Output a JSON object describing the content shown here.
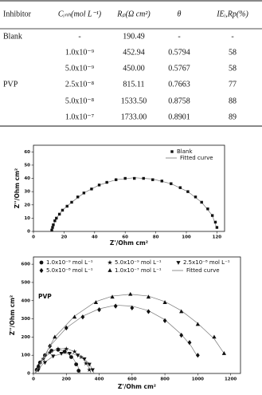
{
  "table": {
    "header": [
      "Inhibitor",
      "Cᵢₙₕ(mol L⁻¹)",
      "Rₚ(Ω cm²)",
      "θ",
      "IEᵢ,Rp(%)"
    ],
    "groups": [
      {
        "label": "Blank",
        "rows": [
          [
            "-",
            "190.49",
            "-",
            "-"
          ]
        ]
      },
      {
        "label": "PVP",
        "rows": [
          [
            "1.0x10⁻⁹",
            "452.94",
            "0.5794",
            "58"
          ],
          [
            "5.0x10⁻⁹",
            "450.00",
            "0.5767",
            "58"
          ],
          [
            "2.5x10⁻⁸",
            "815.11",
            "0.7663",
            "77"
          ],
          [
            "5.0x10⁻⁸",
            "1533.50",
            "0.8758",
            "88"
          ],
          [
            "1.0x10⁻⁷",
            "1733.00",
            "0.8901",
            "89"
          ]
        ]
      }
    ]
  },
  "chart_data": [
    {
      "type": "scatter",
      "x_label": "Z'/Ohm cm²",
      "y_label": "Z''/Ohm cm²",
      "xlim": [
        0,
        125
      ],
      "ylim": [
        0,
        65
      ],
      "xticks": [
        0,
        20,
        40,
        60,
        80,
        100,
        120
      ],
      "yticks": [
        0,
        10,
        20,
        30,
        40,
        50,
        60
      ],
      "legend": "top-right",
      "fit_label": "Fitted curve",
      "series": [
        {
          "name": "Blank",
          "marker": "square",
          "color": "#111111",
          "x": [
            12,
            12.5,
            13,
            14,
            15,
            17,
            19,
            22,
            25,
            29,
            33,
            38,
            43,
            48,
            54,
            60,
            66,
            72,
            78,
            84,
            90,
            96,
            101,
            106,
            110,
            114,
            117,
            119,
            120
          ],
          "values": [
            1,
            3,
            5,
            8,
            10,
            13,
            16,
            19,
            22,
            26,
            29,
            32,
            35,
            37,
            39,
            40,
            40,
            40,
            39,
            38,
            36,
            33,
            30,
            26,
            22,
            17,
            12,
            7,
            3
          ],
          "fit_x": [
            12,
            13,
            15,
            19,
            25,
            33,
            43,
            54,
            66,
            78,
            90,
            101,
            110,
            117,
            120
          ],
          "fit_values": [
            0,
            5,
            10,
            16,
            22,
            29,
            35,
            39,
            40.5,
            39.5,
            36,
            30,
            22,
            12,
            2
          ]
        }
      ]
    },
    {
      "type": "scatter",
      "x_label": "Z'/Ohm cm²",
      "y_label": "Z''/Ohm cm²",
      "annotation": "PVP",
      "xlim": [
        0,
        1260
      ],
      "ylim": [
        0,
        640
      ],
      "xticks": [
        0,
        200,
        400,
        600,
        800,
        1000,
        1200
      ],
      "yticks": [
        0,
        100,
        200,
        300,
        400,
        500,
        600
      ],
      "legend": "top",
      "fit_label": "Fitted curve",
      "series": [
        {
          "name": "1.0x10⁻⁹ mol L⁻¹",
          "marker": "circle",
          "color": "#111111",
          "x": [
            20,
            40,
            70,
            110,
            150,
            190,
            230,
            260,
            275
          ],
          "values": [
            20,
            60,
            100,
            125,
            130,
            120,
            90,
            50,
            15
          ],
          "fit_x": [
            10,
            40,
            80,
            120,
            160,
            200,
            240,
            270,
            285
          ],
          "fit_values": [
            0,
            65,
            110,
            128,
            130,
            118,
            85,
            40,
            0
          ]
        },
        {
          "name": "5.0x10⁻⁹ mol L⁻¹",
          "marker": "star",
          "color": "#111111",
          "x": [
            25,
            60,
            100,
            150,
            200,
            250,
            290,
            320,
            340
          ],
          "values": [
            25,
            80,
            115,
            135,
            135,
            120,
            90,
            55,
            20
          ],
          "fit_x": [
            10,
            50,
            100,
            150,
            200,
            250,
            300,
            335,
            350
          ],
          "fit_values": [
            0,
            70,
            115,
            135,
            137,
            120,
            85,
            35,
            0
          ]
        },
        {
          "name": "2.5x10⁻⁸ mol L⁻¹",
          "marker": "down-triangle",
          "color": "#111111",
          "x": [
            30,
            70,
            120,
            170,
            220,
            270,
            310,
            340,
            360
          ],
          "values": [
            20,
            60,
            95,
            110,
            110,
            100,
            80,
            50,
            20
          ],
          "fit_x": [
            10,
            60,
            120,
            180,
            240,
            300,
            340,
            370
          ],
          "fit_values": [
            0,
            55,
            95,
            110,
            108,
            85,
            55,
            0
          ]
        },
        {
          "name": "5.0x10⁻⁸ mol L⁻¹",
          "marker": "diamond",
          "color": "#111111",
          "x": [
            30,
            100,
            200,
            300,
            400,
            500,
            600,
            700,
            800,
            900,
            950,
            1000
          ],
          "values": [
            40,
            150,
            250,
            310,
            350,
            370,
            360,
            340,
            290,
            210,
            170,
            100
          ],
          "fit_x": [
            10,
            100,
            200,
            300,
            400,
            500,
            600,
            700,
            800,
            900,
            960,
            1000
          ],
          "fit_values": [
            0,
            150,
            250,
            315,
            355,
            375,
            370,
            345,
            295,
            215,
            150,
            90
          ]
        },
        {
          "name": "1.0x10⁻⁷ mol L⁻¹",
          "marker": "up-triangle",
          "color": "#111111",
          "x": [
            30,
            130,
            250,
            380,
            480,
            590,
            700,
            800,
            900,
            1000,
            1100,
            1160
          ],
          "values": [
            40,
            200,
            310,
            390,
            420,
            435,
            420,
            390,
            340,
            270,
            200,
            110
          ],
          "fit_x": [
            10,
            130,
            250,
            380,
            480,
            590,
            700,
            800,
            900,
            1000,
            1100,
            1160
          ],
          "fit_values": [
            0,
            200,
            315,
            395,
            425,
            435,
            425,
            395,
            345,
            275,
            190,
            110
          ]
        }
      ]
    }
  ]
}
